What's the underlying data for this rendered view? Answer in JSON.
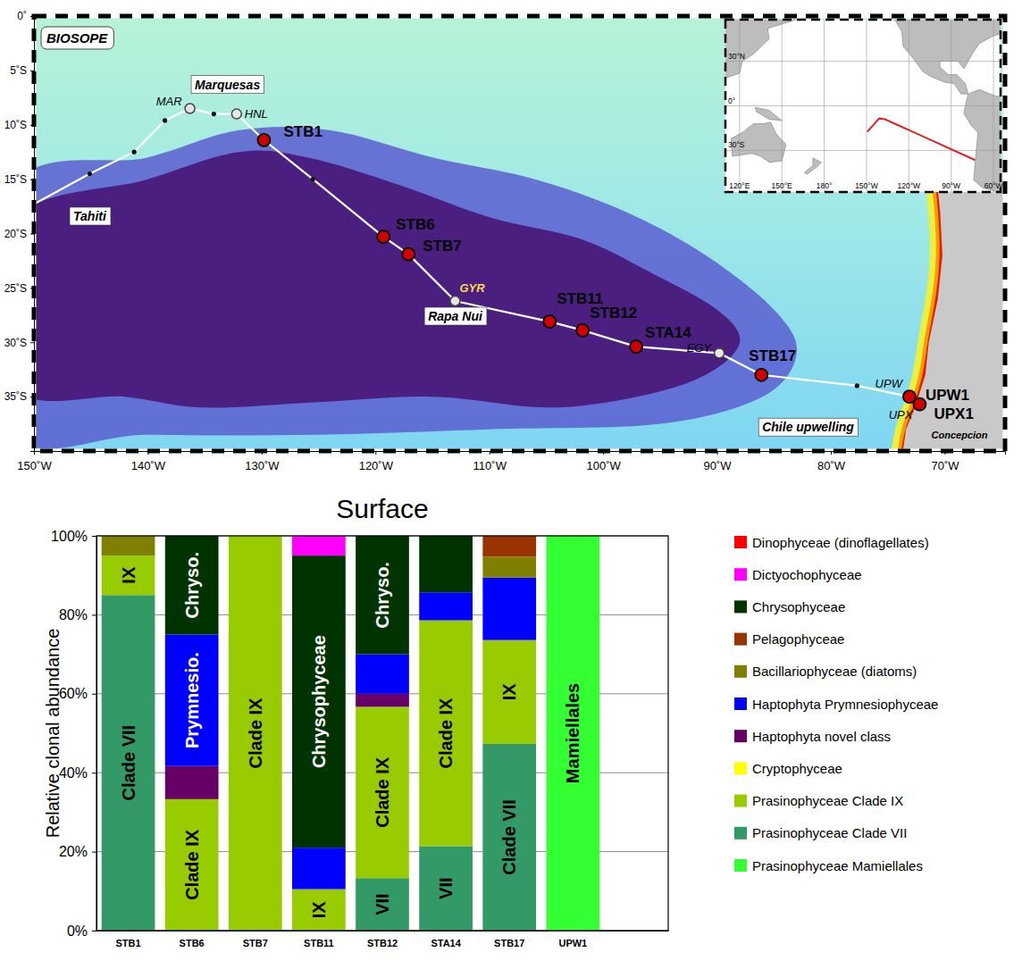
{
  "chart_data": {
    "type": "bar",
    "stacked": true,
    "title": "Surface",
    "y_label": "Relative clonal abundance",
    "categories": [
      "STB1",
      "STB6",
      "STB7",
      "STB11",
      "STB12",
      "STA14",
      "STB17",
      "UPW1",
      null
    ],
    "ylim": [
      0,
      100
    ],
    "yticks": [
      {
        "value": 0,
        "label": "0%"
      },
      {
        "value": 20,
        "label": "20%"
      },
      {
        "value": 40,
        "label": "40%"
      },
      {
        "value": 60,
        "label": "60%"
      },
      {
        "value": 80,
        "label": "80%"
      },
      {
        "value": 100,
        "label": "100%"
      }
    ],
    "grid": true,
    "legend": "right",
    "series": [
      {
        "name": "Dinophyceae (dinoflagellates)",
        "color": "#ff0000",
        "values": [
          0,
          0,
          0,
          0,
          0,
          0,
          0,
          0,
          null
        ]
      },
      {
        "name": "Dictyochophyceae",
        "color": "#ff00ff",
        "values": [
          0,
          0,
          0,
          5,
          0,
          0,
          0,
          0,
          null
        ]
      },
      {
        "name": "Chrysophyceae",
        "color": "#003300",
        "values": [
          0,
          25,
          0,
          74,
          30,
          14.3,
          0,
          0,
          null
        ],
        "segment_labels": [
          null,
          "Chryso.",
          null,
          "Chrysophyceae",
          "Chryso.",
          null,
          null,
          null,
          null
        ]
      },
      {
        "name": "Pelagophyceae",
        "color": "#993300",
        "values": [
          0,
          0,
          0,
          0,
          0,
          0,
          5.3,
          0,
          null
        ]
      },
      {
        "name": "Bacillariophyceae (diatoms)",
        "color": "#808000",
        "values": [
          5,
          0,
          0,
          0,
          0,
          0,
          5.3,
          0,
          null
        ]
      },
      {
        "name": "Haptophyta Prymnesiophyceae",
        "color": "#0000ff",
        "values": [
          0,
          33.3,
          0,
          10.5,
          10,
          7.1,
          15.8,
          0,
          null
        ],
        "segment_labels": [
          null,
          "Prymnesio.",
          null,
          null,
          null,
          null,
          null,
          null,
          null
        ]
      },
      {
        "name": "Haptophyta novel class",
        "color": "#660066",
        "values": [
          0,
          8.4,
          0,
          0,
          3.3,
          0,
          0,
          0,
          null
        ]
      },
      {
        "name": "Cryptophyceae",
        "color": "#ffff00",
        "values": [
          0,
          0,
          0,
          0,
          0,
          0,
          0,
          0,
          null
        ]
      },
      {
        "name": "Prasinophyceae Clade IX",
        "color": "#99cc00",
        "values": [
          10,
          33.3,
          100,
          10.5,
          43.4,
          57.2,
          26.3,
          0,
          null
        ],
        "segment_labels": [
          "IX",
          "Clade IX",
          "Clade IX",
          "IX",
          "Clade IX",
          "Clade IX",
          "IX",
          null,
          null
        ]
      },
      {
        "name": "Prasinophyceae Clade VII",
        "color": "#339966",
        "values": [
          85,
          0,
          0,
          0,
          13.3,
          21.4,
          47.3,
          0,
          null
        ],
        "segment_labels": [
          "Clade VII",
          null,
          null,
          null,
          "VII",
          "VII",
          "Clade VII",
          null,
          null
        ]
      },
      {
        "name": "Prasinophyceae Mamiellales",
        "color": "#33ff33",
        "values": [
          0,
          0,
          0,
          0,
          0,
          0,
          0,
          100,
          null
        ],
        "segment_labels": [
          null,
          null,
          null,
          null,
          null,
          null,
          null,
          "Mamiellales",
          null
        ]
      }
    ]
  },
  "map": {
    "type": "map",
    "title": "BIOSOPE",
    "xlim": [
      -150,
      -64.7
    ],
    "ylim": [
      -40,
      0
    ],
    "xticks": [
      {
        "value": -150,
        "label": "150˚W"
      },
      {
        "value": -140,
        "label": "140˚W"
      },
      {
        "value": -130,
        "label": "130˚W"
      },
      {
        "value": -120,
        "label": "120˚W"
      },
      {
        "value": -110,
        "label": "110˚W"
      },
      {
        "value": -100,
        "label": "100˚W"
      },
      {
        "value": -90,
        "label": "90˚W"
      },
      {
        "value": -80,
        "label": "80˚W"
      },
      {
        "value": -70,
        "label": "70˚W"
      }
    ],
    "yticks": [
      {
        "value": 0,
        "label": "0˚"
      },
      {
        "value": -5,
        "label": "5˚S"
      },
      {
        "value": -10,
        "label": "10˚S"
      },
      {
        "value": -15,
        "label": "15˚S"
      },
      {
        "value": -20,
        "label": "20˚S"
      },
      {
        "value": -25,
        "label": "25˚S"
      },
      {
        "value": -30,
        "label": "30˚S"
      },
      {
        "value": -35,
        "label": "35˚S"
      }
    ],
    "track": {
      "lon": [
        -150,
        -145.1,
        -141.2,
        -138.5,
        -136.3,
        -134.2,
        -132.2,
        -129.8,
        -125.5,
        -119.3,
        -117.1,
        -113.0,
        -104.7,
        -101.8,
        -97.1,
        -89.8,
        -86.1,
        -77.7,
        -73.1,
        -72.2
      ],
      "lat": [
        -17.3,
        -14.5,
        -12.5,
        -9.6,
        -8.5,
        -9.0,
        -9.0,
        -11.4,
        -15.0,
        -20.3,
        -21.9,
        -26.2,
        -28.1,
        -28.9,
        -30.4,
        -31.0,
        -33.0,
        -34.0,
        -35.0,
        -35.7
      ]
    },
    "stations": [
      {
        "name": "STB1",
        "lon": -129.8,
        "lat": -11.4
      },
      {
        "name": "STB6",
        "lon": -119.3,
        "lat": -20.3
      },
      {
        "name": "STB7",
        "lon": -117.1,
        "lat": -21.9
      },
      {
        "name": "STB11",
        "lon": -104.7,
        "lat": -28.1
      },
      {
        "name": "STB12",
        "lon": -101.8,
        "lat": -28.9
      },
      {
        "name": "STA14",
        "lon": -97.1,
        "lat": -30.4
      },
      {
        "name": "STB17",
        "lon": -86.1,
        "lat": -33.0
      },
      {
        "name": "UPW1",
        "lon": -73.1,
        "lat": -35.0
      },
      {
        "name": "UPX1",
        "lon": -72.2,
        "lat": -35.7
      }
    ],
    "sites": [
      {
        "name": "MAR",
        "lon": -136.3,
        "lat": -8.5
      },
      {
        "name": "HNL",
        "lon": -132.2,
        "lat": -9.0
      },
      {
        "name": "GYR",
        "lon": -113.0,
        "lat": -26.2
      },
      {
        "name": "EGY",
        "lon": -89.8,
        "lat": -31.0
      },
      {
        "name": "UPW",
        "lon": -73.1,
        "lat": -35.0
      },
      {
        "name": "UPX",
        "lon": -72.2,
        "lat": -35.7
      }
    ],
    "places": [
      {
        "name": "Marquesas",
        "lon": -133.0,
        "lat": -6.3
      },
      {
        "name": "Tahiti",
        "lon": -145.1,
        "lat": -18.4
      },
      {
        "name": "Rapa Nui",
        "lon": -113.0,
        "lat": -27.6
      },
      {
        "name": "Chile upwelling",
        "lon": -82.0,
        "lat": -37.8
      },
      {
        "name": "Concepcion",
        "lon": -68.7,
        "lat": -38.5
      }
    ],
    "inset": {
      "xlim": [
        110,
        305
      ],
      "ylim": [
        -58,
        58
      ],
      "xticks": [
        {
          "value": 120,
          "label": "120°E"
        },
        {
          "value": 150,
          "label": "150°E"
        },
        {
          "value": 180,
          "label": "180°"
        },
        {
          "value": 210,
          "label": "150°W"
        },
        {
          "value": 240,
          "label": "120°W"
        },
        {
          "value": 270,
          "label": "90°W"
        },
        {
          "value": 300,
          "label": "60°W"
        }
      ],
      "yticks": [
        {
          "value": 30,
          "label": "30°N"
        },
        {
          "value": 0,
          "label": "0°"
        },
        {
          "value": -30,
          "label": "30°S"
        }
      ],
      "track": {
        "lon": [
          210.5,
          219,
          223,
          287
        ],
        "lat": [
          -17.5,
          -8.5,
          -9,
          -36.5
        ]
      },
      "color": "#dd2222"
    }
  }
}
